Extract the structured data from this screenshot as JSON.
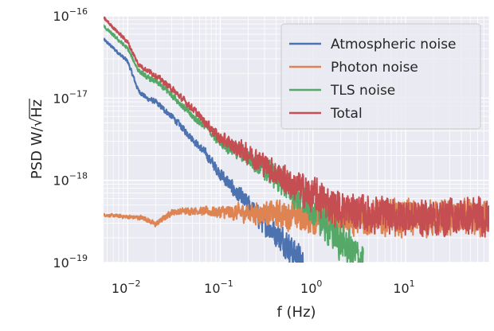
{
  "chart_data": {
    "type": "line",
    "xscale": "log",
    "yscale": "log",
    "xlim": [
      0.0055,
      80
    ],
    "ylim": [
      1e-19,
      1e-16
    ],
    "xlabel": "f (Hz)",
    "ylabel": "PSD W/√Hz",
    "x_ticks": [
      {
        "value": 0.01,
        "base": "10",
        "exp": "−2"
      },
      {
        "value": 0.1,
        "base": "10",
        "exp": "−1"
      },
      {
        "value": 1,
        "base": "10",
        "exp": "0"
      },
      {
        "value": 10,
        "base": "10",
        "exp": "1"
      }
    ],
    "y_ticks": [
      {
        "value": 1e-19,
        "base": "10",
        "exp": "−19"
      },
      {
        "value": 1e-18,
        "base": "10",
        "exp": "−18"
      },
      {
        "value": 1e-17,
        "base": "10",
        "exp": "−17"
      },
      {
        "value": 1e-16,
        "base": "10",
        "exp": "−16"
      }
    ],
    "grid": true,
    "legend_position": "top-right",
    "series": [
      {
        "name": "Atmospheric  noise",
        "color": "#4c72b0",
        "x": [
          0.0055,
          0.01,
          0.013,
          0.016,
          0.02,
          0.03,
          0.05,
          0.07,
          0.1,
          0.15,
          0.2,
          0.3,
          0.5,
          0.8
        ],
        "y": [
          5.2e-17,
          2.8e-17,
          1.25e-17,
          1e-17,
          9e-18,
          6e-18,
          3.2e-18,
          2.1e-18,
          1.2e-18,
          7e-19,
          5e-19,
          3e-19,
          1.8e-19,
          9e-20
        ]
      },
      {
        "name": "Photon noise",
        "color": "#dd8452",
        "x": [
          0.0055,
          0.01,
          0.015,
          0.02,
          0.03,
          0.05,
          0.1,
          0.3,
          1,
          3,
          10,
          80
        ],
        "y": [
          3.8e-19,
          3.6e-19,
          3.5e-19,
          2.9e-19,
          4.1e-19,
          4.3e-19,
          4.1e-19,
          4e-19,
          3.6e-19,
          3.5e-19,
          3.5e-19,
          3.4e-19
        ]
      },
      {
        "name": "TLS noise",
        "color": "#55a868",
        "x": [
          0.0055,
          0.01,
          0.013,
          0.016,
          0.02,
          0.03,
          0.05,
          0.07,
          0.1,
          0.2,
          0.3,
          0.5,
          1,
          2,
          3.5
        ],
        "y": [
          7.5e-17,
          4e-17,
          2.2e-17,
          1.8e-17,
          1.6e-17,
          1.1e-17,
          6e-18,
          4.5e-18,
          3e-18,
          1.9e-18,
          1.4e-18,
          9e-19,
          4.5e-19,
          1.8e-19,
          1e-19
        ]
      },
      {
        "name": "Total",
        "color": "#c44e52",
        "x": [
          0.0055,
          0.01,
          0.013,
          0.016,
          0.02,
          0.03,
          0.05,
          0.07,
          0.1,
          0.2,
          0.3,
          0.5,
          1,
          2,
          5,
          10,
          80
        ],
        "y": [
          9.5e-17,
          4.8e-17,
          2.6e-17,
          2.2e-17,
          1.9e-17,
          1.3e-17,
          7.5e-18,
          5e-18,
          3.2e-18,
          2.1e-18,
          1.6e-18,
          1e-18,
          6.5e-19,
          4.4e-19,
          3.8e-19,
          3.6e-19,
          3.6e-19
        ]
      }
    ]
  }
}
